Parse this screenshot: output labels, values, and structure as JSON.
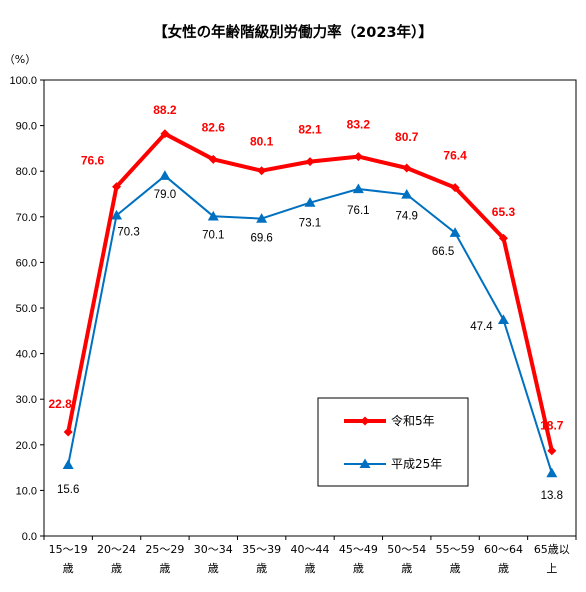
{
  "chart_data": {
    "type": "line",
    "title": "【女性の年齢階級別労働力率（2023年）】",
    "ylabel": "（%）",
    "xlabel": "",
    "ylim": [
      0,
      100
    ],
    "yticks": [
      "0.0",
      "10.0",
      "20.0",
      "30.0",
      "40.0",
      "50.0",
      "60.0",
      "70.0",
      "80.0",
      "90.0",
      "100.0"
    ],
    "categories": [
      [
        "15～19",
        "歳"
      ],
      [
        "20～24",
        "歳"
      ],
      [
        "25～29",
        "歳"
      ],
      [
        "30～34",
        "歳"
      ],
      [
        "35～39",
        "歳"
      ],
      [
        "40～44",
        "歳"
      ],
      [
        "45～49",
        "歳"
      ],
      [
        "50～54",
        "歳"
      ],
      [
        "55～59",
        "歳"
      ],
      [
        "60～64",
        "歳"
      ],
      [
        "65歳以",
        "上"
      ]
    ],
    "grid": false,
    "legend_position": "bottom-right",
    "series": [
      {
        "name": "令和5年",
        "color": "#ff0000",
        "marker": "diamond",
        "values": [
          22.8,
          76.6,
          88.2,
          82.6,
          80.1,
          82.1,
          83.2,
          80.7,
          76.4,
          65.3,
          18.7
        ],
        "labels": [
          "22.8",
          "76.6",
          "88.2",
          "82.6",
          "80.1",
          "82.1",
          "83.2",
          "80.7",
          "76.4",
          "65.3",
          "18.7"
        ]
      },
      {
        "name": "平成25年",
        "color": "#0070c0",
        "marker": "triangle",
        "values": [
          15.6,
          70.3,
          79.0,
          70.1,
          69.6,
          73.1,
          76.1,
          74.9,
          66.5,
          47.4,
          13.8
        ],
        "labels": [
          "15.6",
          "70.3",
          "79.0",
          "70.1",
          "69.6",
          "73.1",
          "76.1",
          "74.9",
          "66.5",
          "47.4",
          "13.8"
        ]
      }
    ]
  }
}
